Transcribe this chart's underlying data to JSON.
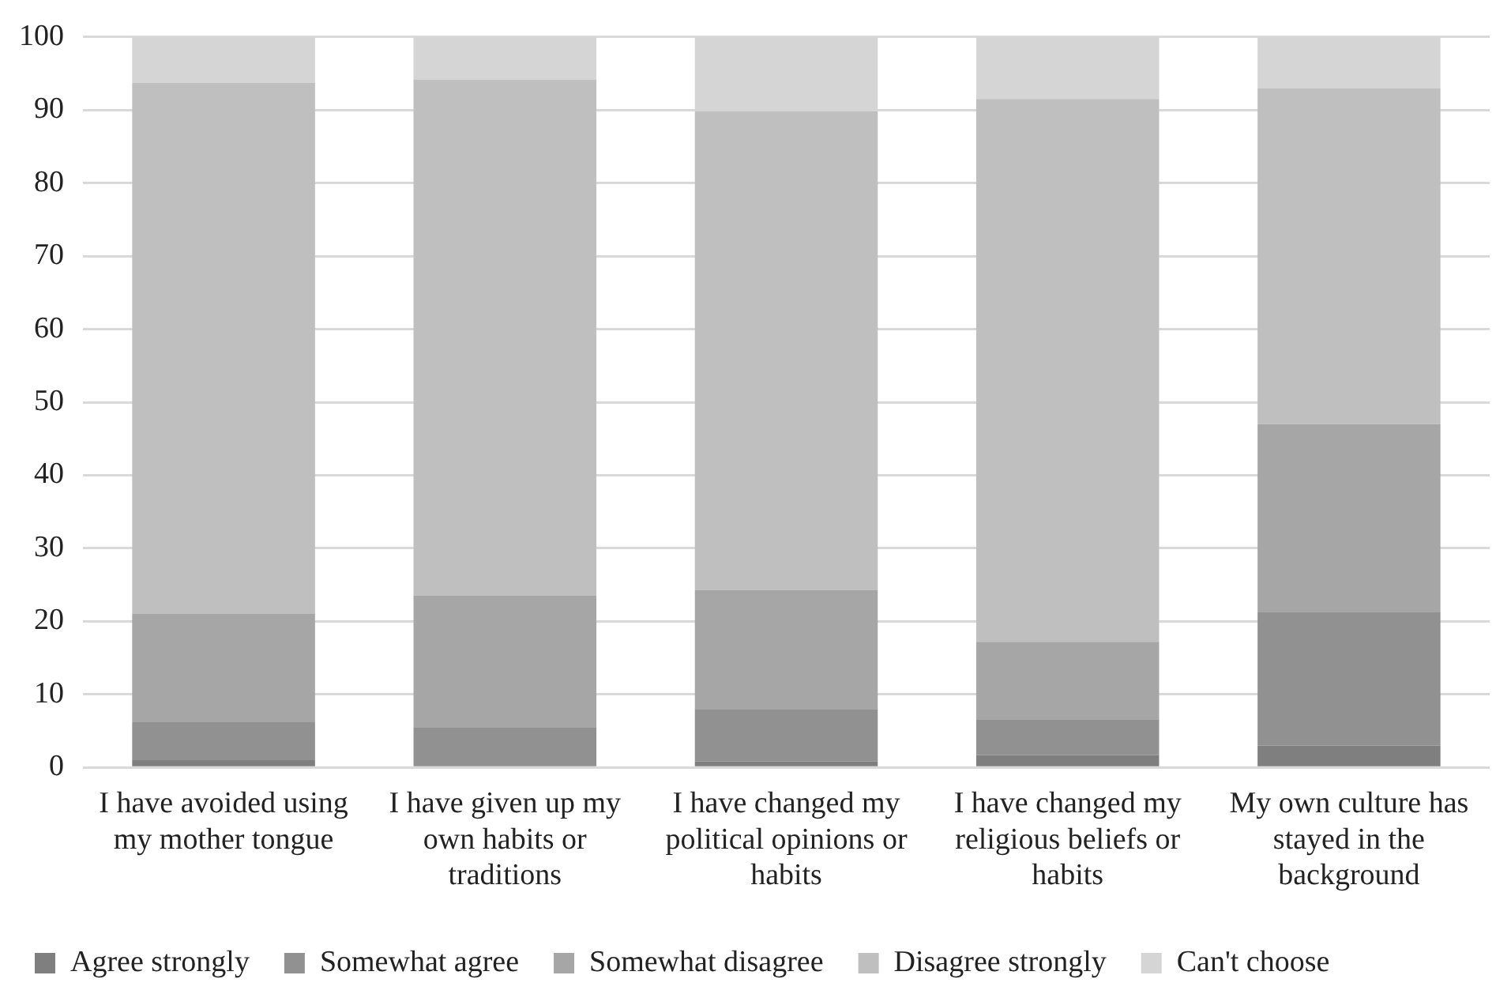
{
  "chart_data": {
    "type": "bar",
    "stacked": true,
    "categories": [
      "I have avoided using my mother tongue",
      "I have given up my own habits or traditions",
      "I have changed my political opinions or habits",
      "I have changed my religious beliefs or habits",
      "My own culture has stayed in the background"
    ],
    "series": [
      {
        "name": "Agree strongly",
        "color": "#7f7f7f",
        "values": [
          1,
          null,
          0.8,
          1.7,
          3
        ]
      },
      {
        "name": "Somewhat agree",
        "color": "#919191",
        "values": [
          5.2,
          5.5,
          7.2,
          4.8,
          18.3
        ]
      },
      {
        "name": "Somewhat disagree",
        "color": "#a6a6a6",
        "values": [
          14.8,
          18,
          16.3,
          10.7,
          25.7
        ]
      },
      {
        "name": "Disagree strongly",
        "color": "#bfbfbf",
        "values": [
          72.7,
          70.7,
          65.5,
          74.3,
          46
        ]
      },
      {
        "name": "Can't choose",
        "color": "#d5d5d5",
        "values": [
          6.3,
          5.8,
          10.2,
          8.5,
          7
        ]
      }
    ],
    "ylim": [
      0,
      100
    ],
    "yticks": [
      0,
      10,
      20,
      30,
      40,
      50,
      60,
      70,
      80,
      90,
      100
    ],
    "grid": "y",
    "legend": "bottom"
  }
}
